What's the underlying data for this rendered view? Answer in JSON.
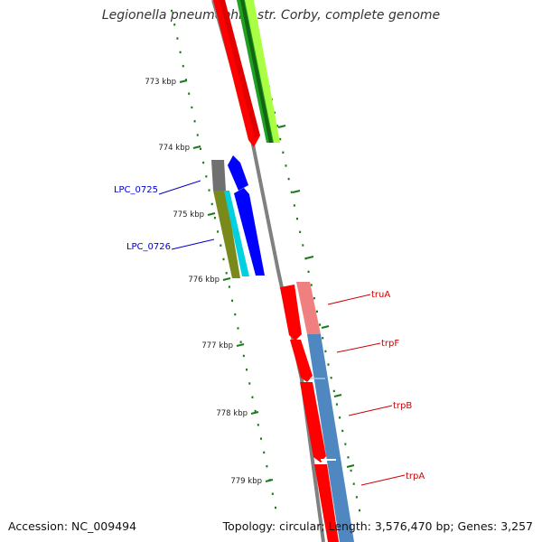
{
  "title": "Legionella pneumophila str. Corby, complete genome",
  "footer": {
    "accession": "Accession: NC_009494",
    "summary": "Topology: circular; Length: 3,576,470 bp; Genes: 3,257"
  },
  "ruler": {
    "unit": "kbp",
    "ticks": [
      "773 kbp",
      "774 kbp",
      "775 kbp",
      "776 kbp",
      "777 kbp",
      "778 kbp",
      "779 kbp"
    ]
  },
  "genes_left": [
    {
      "name": "LPC_0725",
      "color": "#0000cc"
    },
    {
      "name": "LPC_0726",
      "color": "#0000cc"
    }
  ],
  "genes_right": [
    {
      "name": "truA",
      "color": "#cc0000"
    },
    {
      "name": "trpF",
      "color": "#cc0000"
    },
    {
      "name": "trpB",
      "color": "#cc0000"
    },
    {
      "name": "trpA",
      "color": "#cc0000"
    }
  ],
  "colors": {
    "backbone": "#808080",
    "cds_forward": "#ff0000",
    "tick": "#1a7a1a",
    "blue_feature": "#0000ff",
    "steel_feature": "#4f88c0"
  }
}
